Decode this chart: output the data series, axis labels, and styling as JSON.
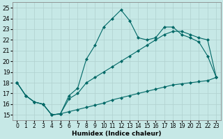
{
  "xlabel": "Humidex (Indice chaleur)",
  "xlim": [
    -0.5,
    23.5
  ],
  "ylim": [
    14.5,
    25.5
  ],
  "xticks": [
    0,
    1,
    2,
    3,
    4,
    5,
    6,
    7,
    8,
    9,
    10,
    11,
    12,
    13,
    14,
    15,
    16,
    17,
    18,
    19,
    20,
    21,
    22,
    23
  ],
  "yticks": [
    15,
    16,
    17,
    18,
    19,
    20,
    21,
    22,
    23,
    24,
    25
  ],
  "bg_color": "#c6e8e6",
  "grid_color": "#b0d0ce",
  "line_color": "#006866",
  "line1": {
    "x": [
      0,
      1,
      2,
      3,
      4,
      5,
      6,
      7,
      8,
      9,
      10,
      11,
      12,
      13,
      14,
      15,
      16,
      17,
      18,
      19,
      20,
      21,
      22,
      23
    ],
    "y": [
      18.0,
      16.8,
      16.2,
      16.0,
      15.0,
      15.1,
      15.3,
      15.5,
      15.7,
      15.9,
      16.1,
      16.4,
      16.6,
      16.8,
      17.0,
      17.2,
      17.4,
      17.6,
      17.8,
      17.9,
      18.0,
      18.1,
      18.2,
      18.5
    ]
  },
  "line2": {
    "x": [
      0,
      1,
      2,
      3,
      4,
      5,
      6,
      7,
      8,
      9,
      10,
      11,
      12,
      13,
      14,
      15,
      16,
      17,
      18,
      19,
      20,
      21,
      22,
      23
    ],
    "y": [
      18.0,
      16.8,
      16.2,
      16.0,
      15.0,
      15.1,
      16.5,
      17.0,
      18.0,
      18.5,
      19.0,
      19.5,
      20.0,
      20.5,
      21.0,
      21.5,
      22.0,
      22.5,
      22.8,
      22.8,
      22.5,
      22.2,
      22.0,
      18.5
    ]
  },
  "line3": {
    "x": [
      0,
      1,
      2,
      3,
      4,
      5,
      6,
      7,
      8,
      9,
      10,
      11,
      12,
      13,
      14,
      15,
      16,
      17,
      18,
      19,
      20,
      21,
      22,
      23
    ],
    "y": [
      18.0,
      16.8,
      16.2,
      16.0,
      15.0,
      15.1,
      16.8,
      17.5,
      20.2,
      21.5,
      23.2,
      24.0,
      24.8,
      23.8,
      22.2,
      22.0,
      22.2,
      23.2,
      23.2,
      22.5,
      22.2,
      21.8,
      20.5,
      18.5
    ]
  }
}
